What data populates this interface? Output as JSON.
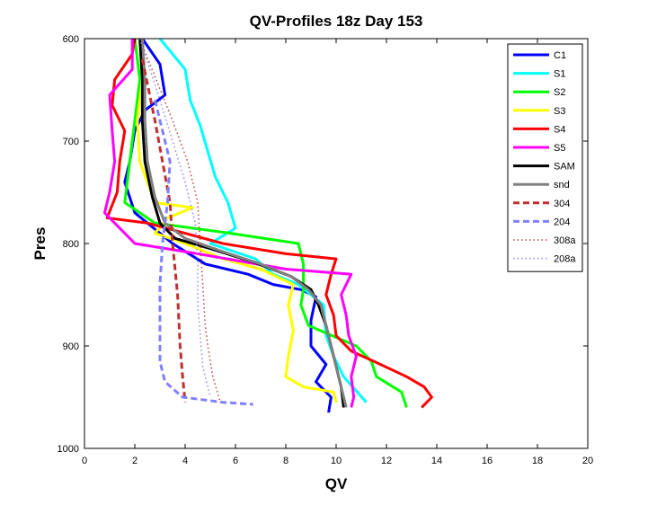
{
  "chart_data": {
    "type": "line",
    "title": "QV-Profiles 18z Day 153",
    "xlabel": "QV",
    "ylabel": "Pres",
    "xlim": [
      0,
      20
    ],
    "ylim": [
      600,
      1000
    ],
    "y_reversed": true,
    "x_ticks": [
      "0",
      "2",
      "4",
      "6",
      "8",
      "10",
      "12",
      "14",
      "16",
      "18",
      "20"
    ],
    "y_ticks": [
      "600",
      "700",
      "800",
      "900",
      "1000"
    ],
    "legend_position": "top-right",
    "series": [
      {
        "name": "C1",
        "color": "#0000ff",
        "style": "solid",
        "points": [
          [
            2.3,
            600
          ],
          [
            3.0,
            625
          ],
          [
            3.2,
            655
          ],
          [
            2.4,
            670
          ],
          [
            2.0,
            690
          ],
          [
            1.8,
            720
          ],
          [
            1.6,
            740
          ],
          [
            2.0,
            770
          ],
          [
            3.0,
            790
          ],
          [
            3.5,
            800
          ],
          [
            4.8,
            820
          ],
          [
            6.5,
            830
          ],
          [
            7.5,
            840
          ],
          [
            8.6,
            845
          ],
          [
            9.2,
            852
          ],
          [
            9.0,
            875
          ],
          [
            9.0,
            900
          ],
          [
            9.6,
            918
          ],
          [
            9.2,
            935
          ],
          [
            9.8,
            950
          ],
          [
            9.7,
            965
          ]
        ]
      },
      {
        "name": "S1",
        "color": "#00ffff",
        "style": "solid",
        "points": [
          [
            3.0,
            600
          ],
          [
            4.0,
            630
          ],
          [
            4.2,
            660
          ],
          [
            4.6,
            685
          ],
          [
            4.9,
            710
          ],
          [
            5.2,
            735
          ],
          [
            5.7,
            760
          ],
          [
            6.0,
            785
          ],
          [
            5.0,
            800
          ],
          [
            6.8,
            815
          ],
          [
            7.5,
            830
          ],
          [
            8.5,
            840
          ],
          [
            9.5,
            860
          ],
          [
            9.6,
            890
          ],
          [
            9.9,
            910
          ],
          [
            10.3,
            930
          ],
          [
            11.2,
            955
          ]
        ]
      },
      {
        "name": "S2",
        "color": "#00ff00",
        "style": "solid",
        "points": [
          [
            2.0,
            600
          ],
          [
            2.2,
            640
          ],
          [
            2.0,
            680
          ],
          [
            1.8,
            720
          ],
          [
            1.6,
            760
          ],
          [
            2.8,
            780
          ],
          [
            5.8,
            790
          ],
          [
            8.5,
            800
          ],
          [
            8.7,
            820
          ],
          [
            8.7,
            845
          ],
          [
            8.6,
            860
          ],
          [
            8.9,
            880
          ],
          [
            10.8,
            900
          ],
          [
            11.4,
            915
          ],
          [
            11.6,
            930
          ],
          [
            12.6,
            945
          ],
          [
            12.8,
            960
          ]
        ]
      },
      {
        "name": "S3",
        "color": "#ffff00",
        "style": "solid",
        "points": [
          [
            2.2,
            600
          ],
          [
            2.3,
            640
          ],
          [
            2.1,
            680
          ],
          [
            2.2,
            720
          ],
          [
            2.8,
            760
          ],
          [
            4.3,
            765
          ],
          [
            3.3,
            775
          ],
          [
            2.8,
            790
          ],
          [
            4.0,
            800
          ],
          [
            5.5,
            815
          ],
          [
            7.0,
            825
          ],
          [
            8.3,
            840
          ],
          [
            8.1,
            860
          ],
          [
            8.3,
            885
          ],
          [
            8.1,
            910
          ],
          [
            8.0,
            930
          ],
          [
            8.7,
            940
          ],
          [
            9.9,
            945
          ],
          [
            10.0,
            955
          ]
        ]
      },
      {
        "name": "S4",
        "color": "#ff0000",
        "style": "solid",
        "points": [
          [
            2.0,
            600
          ],
          [
            1.9,
            615
          ],
          [
            1.2,
            640
          ],
          [
            1.1,
            665
          ],
          [
            1.6,
            690
          ],
          [
            1.4,
            720
          ],
          [
            1.3,
            750
          ],
          [
            0.9,
            775
          ],
          [
            2.5,
            780
          ],
          [
            5.5,
            800
          ],
          [
            8.0,
            810
          ],
          [
            10.0,
            815
          ],
          [
            9.8,
            830
          ],
          [
            9.6,
            850
          ],
          [
            9.9,
            870
          ],
          [
            10.0,
            890
          ],
          [
            10.6,
            905
          ],
          [
            11.5,
            915
          ],
          [
            12.8,
            930
          ],
          [
            13.5,
            940
          ],
          [
            13.8,
            950
          ],
          [
            13.4,
            960
          ]
        ]
      },
      {
        "name": "S5",
        "color": "#ff00ff",
        "style": "solid",
        "points": [
          [
            1.9,
            600
          ],
          [
            1.9,
            630
          ],
          [
            1.0,
            655
          ],
          [
            1.1,
            690
          ],
          [
            1.2,
            720
          ],
          [
            1.0,
            750
          ],
          [
            0.8,
            770
          ],
          [
            2.0,
            800
          ],
          [
            4.5,
            810
          ],
          [
            8.0,
            825
          ],
          [
            10.6,
            830
          ],
          [
            10.2,
            850
          ],
          [
            10.4,
            870
          ],
          [
            10.5,
            890
          ],
          [
            10.8,
            910
          ],
          [
            10.6,
            930
          ],
          [
            10.7,
            950
          ],
          [
            10.6,
            960
          ]
        ]
      },
      {
        "name": "SAM",
        "color": "#000000",
        "style": "solid",
        "points": [
          [
            2.2,
            600
          ],
          [
            2.3,
            640
          ],
          [
            2.3,
            680
          ],
          [
            2.4,
            720
          ],
          [
            2.7,
            755
          ],
          [
            3.0,
            780
          ],
          [
            3.6,
            795
          ],
          [
            5.0,
            805
          ],
          [
            6.7,
            818
          ],
          [
            8.2,
            832
          ],
          [
            9.0,
            845
          ],
          [
            9.3,
            860
          ],
          [
            9.6,
            880
          ],
          [
            9.8,
            900
          ],
          [
            10.0,
            920
          ],
          [
            10.2,
            940
          ],
          [
            10.3,
            960
          ]
        ]
      },
      {
        "name": "snd",
        "color": "#808080",
        "style": "solid",
        "points": [
          [
            2.3,
            600
          ],
          [
            2.4,
            640
          ],
          [
            2.4,
            680
          ],
          [
            2.5,
            720
          ],
          [
            2.8,
            755
          ],
          [
            3.2,
            780
          ],
          [
            4.0,
            795
          ],
          [
            5.5,
            808
          ],
          [
            7.0,
            820
          ],
          [
            8.2,
            832
          ],
          [
            8.9,
            845
          ],
          [
            9.4,
            860
          ],
          [
            9.6,
            880
          ],
          [
            9.8,
            900
          ],
          [
            10.0,
            920
          ],
          [
            10.2,
            940
          ],
          [
            10.4,
            960
          ]
        ]
      },
      {
        "name": "304",
        "color": "#c03030",
        "style": "dashed",
        "points": [
          [
            2.3,
            620
          ],
          [
            2.8,
            680
          ],
          [
            3.1,
            720
          ],
          [
            3.4,
            760
          ],
          [
            3.5,
            800
          ],
          [
            3.7,
            850
          ],
          [
            3.8,
            900
          ],
          [
            3.9,
            930
          ],
          [
            4.0,
            955
          ]
        ]
      },
      {
        "name": "204",
        "color": "#8080ff",
        "style": "dashed",
        "points": [
          [
            2.8,
            660
          ],
          [
            3.4,
            720
          ],
          [
            3.3,
            760
          ],
          [
            3.2,
            780
          ],
          [
            3.1,
            800
          ],
          [
            3.0,
            840
          ],
          [
            3.0,
            880
          ],
          [
            3.0,
            915
          ],
          [
            3.2,
            935
          ],
          [
            3.9,
            950
          ],
          [
            5.5,
            955
          ],
          [
            6.7,
            957
          ]
        ]
      },
      {
        "name": "308a",
        "color": "#c04040",
        "style": "dotted",
        "points": [
          [
            2.2,
            600
          ],
          [
            3.5,
            680
          ],
          [
            4.1,
            720
          ],
          [
            4.5,
            760
          ],
          [
            4.6,
            800
          ],
          [
            4.7,
            840
          ],
          [
            4.8,
            880
          ],
          [
            4.9,
            900
          ],
          [
            5.1,
            930
          ],
          [
            5.4,
            955
          ]
        ]
      },
      {
        "name": "208a",
        "color": "#8888ff",
        "style": "dotted",
        "points": [
          [
            2.2,
            600
          ],
          [
            3.0,
            660
          ],
          [
            3.5,
            700
          ],
          [
            4.0,
            740
          ],
          [
            4.4,
            780
          ],
          [
            4.5,
            820
          ],
          [
            4.5,
            860
          ],
          [
            4.6,
            890
          ],
          [
            4.7,
            920
          ],
          [
            5.0,
            950
          ]
        ]
      }
    ]
  }
}
